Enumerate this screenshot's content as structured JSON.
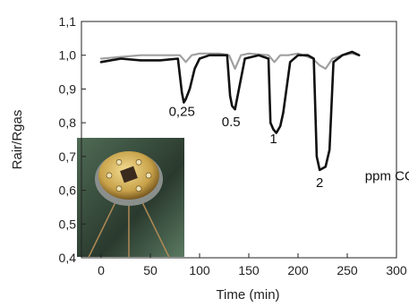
{
  "chart_data": {
    "type": "line",
    "title": "",
    "xlabel": "Time (min)",
    "ylabel": "Rair/Rgas",
    "xlim": [
      -20,
      300
    ],
    "ylim": [
      0.4,
      1.1
    ],
    "x_ticks": [
      "0",
      "50",
      "100",
      "150",
      "200",
      "250",
      "300"
    ],
    "x_tick_values": [
      0,
      50,
      100,
      150,
      200,
      250,
      300
    ],
    "y_ticks": [
      "0,4",
      "0,5",
      "0,6",
      "0,7",
      "0,8",
      "0,9",
      "1,0",
      "1,1"
    ],
    "y_tick_values": [
      0.4,
      0.5,
      0.6,
      0.7,
      0.8,
      0.9,
      1.0,
      1.1
    ],
    "grid": false,
    "series": [
      {
        "color": "#111111",
        "x": [
          0,
          20,
          40,
          60,
          78,
          82,
          84,
          86,
          90,
          95,
          100,
          110,
          120,
          128,
          131,
          133,
          136,
          140,
          146,
          160,
          170,
          172,
          175,
          178,
          182,
          185,
          192,
          200,
          210,
          216,
          219,
          222,
          228,
          232,
          236,
          245,
          255,
          262
        ],
        "y": [
          0.98,
          0.99,
          0.985,
          0.985,
          0.99,
          0.89,
          0.86,
          0.87,
          0.9,
          0.96,
          0.99,
          1.0,
          1.0,
          1.0,
          0.88,
          0.85,
          0.84,
          0.9,
          0.99,
          1.0,
          0.99,
          0.8,
          0.78,
          0.77,
          0.79,
          0.83,
          0.98,
          1.0,
          1.0,
          0.99,
          0.7,
          0.66,
          0.67,
          0.72,
          0.98,
          1.0,
          1.01,
          1.0
        ]
      },
      {
        "color": "#a0a0a0",
        "x": [
          0,
          20,
          40,
          60,
          80,
          86,
          92,
          100,
          120,
          130,
          136,
          142,
          150,
          170,
          176,
          182,
          190,
          200,
          215,
          222,
          228,
          235,
          245,
          255,
          262
        ],
        "y": [
          0.99,
          0.995,
          1.0,
          1.0,
          1.0,
          0.98,
          1.0,
          1.005,
          1.005,
          1.0,
          0.96,
          1.0,
          1.005,
          1.0,
          0.98,
          1.0,
          1.0,
          1.005,
          0.99,
          0.97,
          0.96,
          0.99,
          1.0,
          1.005,
          1.0
        ]
      }
    ],
    "annotations": [
      {
        "text": "0,25",
        "x": 82,
        "y": 0.82
      },
      {
        "text": "0.5",
        "x": 132,
        "y": 0.79
      },
      {
        "text": "1",
        "x": 175,
        "y": 0.74
      },
      {
        "text": "2",
        "x": 222,
        "y": 0.61
      },
      {
        "text": "ppm CO",
        "x": 268,
        "y": 0.63
      }
    ],
    "inset": {
      "description": "photo",
      "color_dark": "#2a3a2e",
      "color_gold": "#c8a24a"
    }
  }
}
